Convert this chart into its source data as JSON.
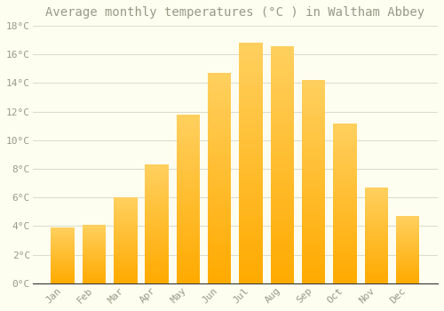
{
  "title": "Average monthly temperatures (°C ) in Waltham Abbey",
  "months": [
    "Jan",
    "Feb",
    "Mar",
    "Apr",
    "May",
    "Jun",
    "Jul",
    "Aug",
    "Sep",
    "Oct",
    "Nov",
    "Dec"
  ],
  "values": [
    3.9,
    4.1,
    6.0,
    8.3,
    11.8,
    14.7,
    16.8,
    16.6,
    14.2,
    11.2,
    6.7,
    4.7
  ],
  "bar_color": "#FFAA00",
  "bar_color_top": "#FFD060",
  "background_color": "#FEFEF0",
  "grid_color": "#DDDDCC",
  "text_color": "#999988",
  "axis_color": "#333333",
  "ylim": [
    0,
    18
  ],
  "ytick_step": 2,
  "title_fontsize": 10,
  "tick_fontsize": 8,
  "font_family": "monospace"
}
